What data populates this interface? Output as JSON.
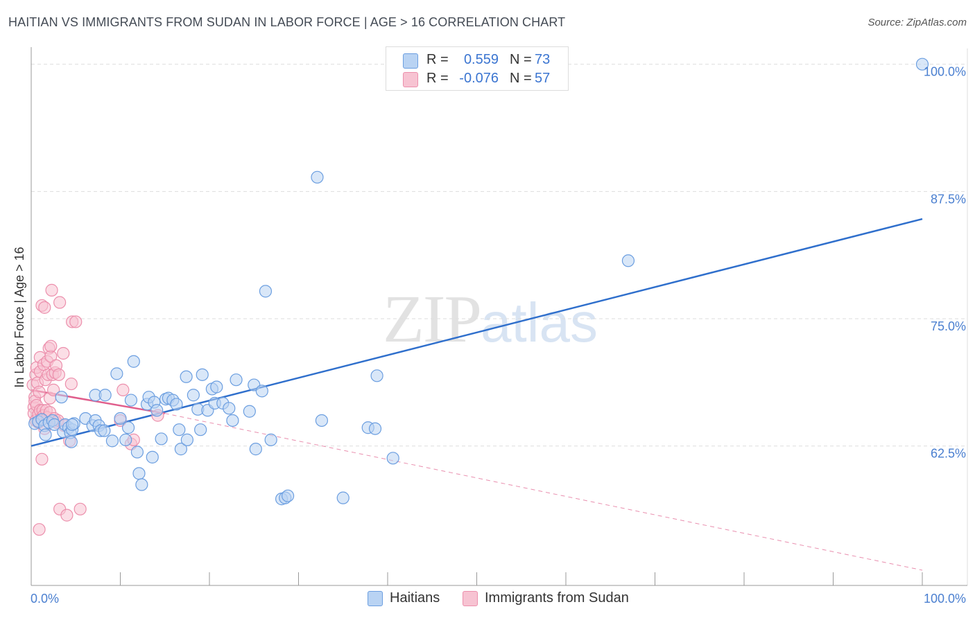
{
  "header": {
    "title": "HAITIAN VS IMMIGRANTS FROM SUDAN IN LABOR FORCE | AGE > 16 CORRELATION CHART",
    "source": "Source: ZipAtlas.com"
  },
  "watermark": {
    "zip": "ZIP",
    "atlas": "atlas"
  },
  "legend": {
    "rows": [
      {
        "r_label": "R =",
        "r_value": "0.559",
        "n_label": "N =",
        "n_value": "73"
      },
      {
        "r_label": "R =",
        "r_value": "-0.076",
        "n_label": "N =",
        "n_value": "57"
      }
    ]
  },
  "colors": {
    "blue_fill": "#b9d3f3",
    "blue_stroke": "#6b9ee0",
    "blue_line": "#2f6fcc",
    "pink_fill": "#f7c3d2",
    "pink_stroke": "#ec8fac",
    "pink_line": "#e05e8c",
    "grid": "#dddddd",
    "tick_text": "#4a7fd0"
  },
  "chart_data": {
    "type": "scatter",
    "title": "HAITIAN VS IMMIGRANTS FROM SUDAN IN LABOR FORCE | AGE > 16 CORRELATION CHART",
    "xlabel": "",
    "ylabel": "In Labor Force | Age > 16",
    "xlim": [
      0,
      100
    ],
    "ylim": [
      48.8,
      101.0
    ],
    "x_tick_labels": [
      {
        "value": 0,
        "label": "0.0%"
      },
      {
        "value": 100,
        "label": "100.0%"
      }
    ],
    "y_tick_labels": [
      {
        "value": 62.5,
        "label": "62.5%"
      },
      {
        "value": 75.0,
        "label": "75.0%"
      },
      {
        "value": 87.5,
        "label": "87.5%"
      },
      {
        "value": 100.0,
        "label": "100.0%"
      }
    ],
    "grid": true,
    "legend_position": "top-center",
    "series": [
      {
        "name": "Haitians",
        "r": 0.559,
        "n": 73,
        "trend": {
          "x": [
            0,
            100
          ],
          "y": [
            62.5,
            84.8
          ],
          "style": "solid"
        },
        "points": [
          [
            0.4,
            64.7
          ],
          [
            0.8,
            64.9
          ],
          [
            1.2,
            65.1
          ],
          [
            1.5,
            64.5
          ],
          [
            1.6,
            63.6
          ],
          [
            2.0,
            64.8
          ],
          [
            2.4,
            65.0
          ],
          [
            2.6,
            64.6
          ],
          [
            3.4,
            67.3
          ],
          [
            3.6,
            63.9
          ],
          [
            3.8,
            64.6
          ],
          [
            4.2,
            64.3
          ],
          [
            4.4,
            63.8
          ],
          [
            4.5,
            62.9
          ],
          [
            4.6,
            64.1
          ],
          [
            4.8,
            64.7
          ],
          [
            4.6,
            64.6
          ],
          [
            6.1,
            65.2
          ],
          [
            6.9,
            64.5
          ],
          [
            7.2,
            65.0
          ],
          [
            7.2,
            67.5
          ],
          [
            7.6,
            64.5
          ],
          [
            7.8,
            64.0
          ],
          [
            8.2,
            64.0
          ],
          [
            8.3,
            67.5
          ],
          [
            9.1,
            63.0
          ],
          [
            9.6,
            69.6
          ],
          [
            10.0,
            65.2
          ],
          [
            10.6,
            63.1
          ],
          [
            10.9,
            64.3
          ],
          [
            11.2,
            67.0
          ],
          [
            11.5,
            70.8
          ],
          [
            11.9,
            61.9
          ],
          [
            12.1,
            59.8
          ],
          [
            12.4,
            58.7
          ],
          [
            13.0,
            66.6
          ],
          [
            13.2,
            67.3
          ],
          [
            13.6,
            61.4
          ],
          [
            13.8,
            66.8
          ],
          [
            14.1,
            66.0
          ],
          [
            14.6,
            63.2
          ],
          [
            15.1,
            67.1
          ],
          [
            15.4,
            67.2
          ],
          [
            15.9,
            67.0
          ],
          [
            16.3,
            66.6
          ],
          [
            16.8,
            62.2
          ],
          [
            16.6,
            64.1
          ],
          [
            17.4,
            69.3
          ],
          [
            17.5,
            63.1
          ],
          [
            18.2,
            67.5
          ],
          [
            18.7,
            66.1
          ],
          [
            19.0,
            64.1
          ],
          [
            19.2,
            69.5
          ],
          [
            19.8,
            66.0
          ],
          [
            20.3,
            68.1
          ],
          [
            20.6,
            66.7
          ],
          [
            20.8,
            68.3
          ],
          [
            21.5,
            66.7
          ],
          [
            22.2,
            66.2
          ],
          [
            22.6,
            65.0
          ],
          [
            23.0,
            69.0
          ],
          [
            24.5,
            65.9
          ],
          [
            25.0,
            68.5
          ],
          [
            25.2,
            62.2
          ],
          [
            25.9,
            67.9
          ],
          [
            26.3,
            77.7
          ],
          [
            26.9,
            63.1
          ],
          [
            28.1,
            57.3
          ],
          [
            28.5,
            57.4
          ],
          [
            28.8,
            57.6
          ],
          [
            32.1,
            88.9
          ],
          [
            32.6,
            65.0
          ],
          [
            35.0,
            57.4
          ],
          [
            37.8,
            64.3
          ],
          [
            38.6,
            64.2
          ],
          [
            38.8,
            69.4
          ],
          [
            40.6,
            61.3
          ],
          [
            67.0,
            80.7
          ],
          [
            100.0,
            100.0
          ]
        ]
      },
      {
        "name": "Immigrants from Sudan",
        "r": -0.076,
        "n": 57,
        "trend": {
          "x": [
            0,
            15
          ],
          "y": [
            68.0,
            65.7
          ],
          "style": "solid",
          "extension": {
            "x": [
              15,
              100
            ],
            "y": [
              65.7,
              50.3
            ],
            "style": "dashed"
          }
        },
        "points": [
          [
            0.2,
            68.5
          ],
          [
            0.3,
            66.3
          ],
          [
            0.3,
            65.7
          ],
          [
            0.4,
            67.3
          ],
          [
            0.4,
            66.9
          ],
          [
            0.5,
            65.0
          ],
          [
            0.5,
            69.5
          ],
          [
            0.6,
            70.2
          ],
          [
            0.6,
            66.5
          ],
          [
            0.7,
            68.7
          ],
          [
            0.8,
            64.8
          ],
          [
            0.8,
            65.6
          ],
          [
            0.9,
            67.8
          ],
          [
            1.0,
            66.0
          ],
          [
            1.0,
            69.8
          ],
          [
            1.0,
            71.2
          ],
          [
            1.1,
            65.2
          ],
          [
            1.2,
            61.2
          ],
          [
            1.2,
            76.3
          ],
          [
            1.3,
            66.0
          ],
          [
            1.4,
            70.5
          ],
          [
            1.4,
            65.5
          ],
          [
            1.5,
            76.1
          ],
          [
            1.5,
            64.2
          ],
          [
            1.6,
            69.0
          ],
          [
            1.7,
            66.0
          ],
          [
            1.8,
            65.3
          ],
          [
            1.8,
            70.8
          ],
          [
            1.9,
            69.5
          ],
          [
            2.0,
            72.1
          ],
          [
            2.1,
            67.2
          ],
          [
            2.1,
            65.8
          ],
          [
            2.2,
            71.3
          ],
          [
            2.2,
            72.3
          ],
          [
            2.3,
            77.8
          ],
          [
            2.4,
            69.5
          ],
          [
            2.5,
            68.0
          ],
          [
            2.6,
            65.2
          ],
          [
            2.7,
            69.7
          ],
          [
            2.8,
            70.4
          ],
          [
            2.9,
            64.8
          ],
          [
            3.0,
            65.0
          ],
          [
            3.1,
            69.5
          ],
          [
            3.2,
            56.3
          ],
          [
            3.2,
            76.6
          ],
          [
            3.6,
            71.6
          ],
          [
            3.7,
            64.5
          ],
          [
            4.0,
            55.7
          ],
          [
            4.3,
            63.0
          ],
          [
            4.5,
            68.6
          ],
          [
            4.6,
            74.7
          ],
          [
            5.0,
            74.7
          ],
          [
            5.5,
            56.3
          ],
          [
            10.0,
            65.0
          ],
          [
            10.3,
            68.0
          ],
          [
            11.2,
            62.7
          ],
          [
            11.5,
            63.1
          ],
          [
            14.2,
            65.5
          ],
          [
            0.9,
            54.3
          ]
        ]
      }
    ]
  }
}
